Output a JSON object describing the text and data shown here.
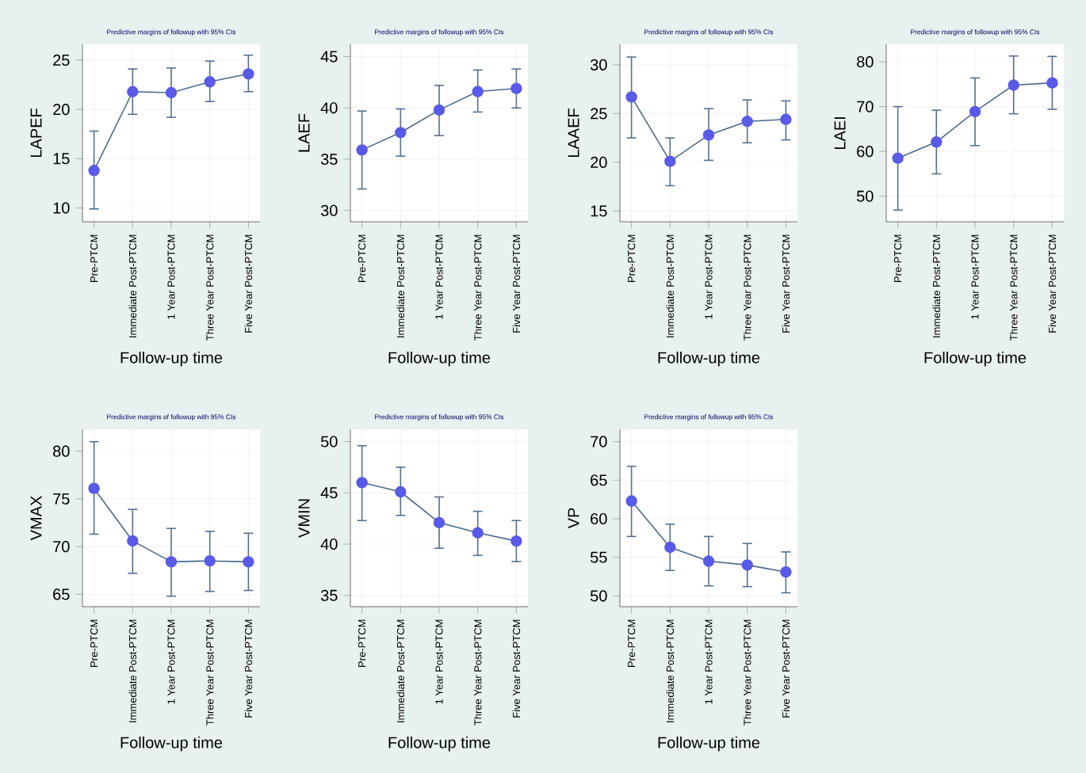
{
  "chart_data": [
    {
      "type": "line",
      "title": "Predictive margins of followup with 95% CIs",
      "xlabel": "Follow-up time",
      "ylabel": "LAPEF",
      "categories": [
        "Pre-PTCM",
        "Immediate Post-PTCM",
        "1 Year Post-PTCM",
        "Three Year Post-PTCM",
        "Five Year Post-PTCM"
      ],
      "values": [
        13.8,
        21.8,
        21.7,
        22.8,
        23.6
      ],
      "errors": [
        [
          9.9,
          17.8
        ],
        [
          19.5,
          24.1
        ],
        [
          19.2,
          24.2
        ],
        [
          20.8,
          24.9
        ],
        [
          21.8,
          25.5
        ]
      ],
      "color": "#5a5ae8",
      "ylim": [
        8.6,
        26.6
      ],
      "yticks": [
        10,
        15,
        20,
        25
      ],
      "grid": true,
      "marker": "circle"
    },
    {
      "type": "line",
      "title": "Predictive margins of followup with 95% CIs",
      "xlabel": "Follow-up time",
      "ylabel": "LAEF",
      "categories": [
        "Pre-PTCM",
        "Immediate Post-PTCM",
        "1 Year Post-PTCM",
        "Three Year Post-PTCM",
        "Five Year Post-PTCM"
      ],
      "values": [
        35.9,
        37.6,
        39.8,
        41.6,
        41.9
      ],
      "errors": [
        [
          32.1,
          39.7
        ],
        [
          35.3,
          39.9
        ],
        [
          37.3,
          42.2
        ],
        [
          39.6,
          43.7
        ],
        [
          40.0,
          43.8
        ]
      ],
      "color": "#5a5ae8",
      "ylim": [
        28.9,
        46.2
      ],
      "yticks": [
        30,
        35,
        40,
        45
      ],
      "grid": true,
      "marker": "circle"
    },
    {
      "type": "line",
      "title": "Predictive margins of followup with 95% CIs",
      "xlabel": "Follow-up time",
      "ylabel": "LAAEF",
      "categories": [
        "Pre-PTCM",
        "Immediate Post-PTCM",
        "1 Year Post-PTCM",
        "Three Year Post-PTCM",
        "Five Year Post-PTCM"
      ],
      "values": [
        26.7,
        20.1,
        22.8,
        24.2,
        24.4
      ],
      "errors": [
        [
          22.5,
          30.8
        ],
        [
          17.6,
          22.5
        ],
        [
          20.2,
          25.5
        ],
        [
          22.0,
          26.4
        ],
        [
          22.3,
          26.3
        ]
      ],
      "color": "#5a5ae8",
      "ylim": [
        13.9,
        32.1
      ],
      "yticks": [
        15,
        20,
        25,
        30
      ],
      "grid": true,
      "marker": "circle"
    },
    {
      "type": "line",
      "title": "Predictive margins of followup with 95% CIs",
      "xlabel": "Follow-up time",
      "ylabel": "LAEI",
      "categories": [
        "Pre-PTCM",
        "Immediate Post-PTCM",
        "1 Year Post-PTCM",
        "Three Year Post-PTCM",
        "Five Year Post-PTCM"
      ],
      "values": [
        58.5,
        62.1,
        68.9,
        74.8,
        75.3
      ],
      "errors": [
        [
          46.9,
          70.0
        ],
        [
          55.0,
          69.2
        ],
        [
          61.3,
          76.4
        ],
        [
          68.4,
          81.3
        ],
        [
          69.4,
          81.2
        ]
      ],
      "color": "#5a5ae8",
      "ylim": [
        44.3,
        83.9
      ],
      "yticks": [
        50,
        60,
        70,
        80
      ],
      "grid": true,
      "marker": "circle"
    },
    {
      "type": "line",
      "title": "Predictive margins of followup with 95% CIs",
      "xlabel": "Follow-up time",
      "ylabel": "VMAX",
      "categories": [
        "Pre-PTCM",
        "Immediate Post-PTCM",
        "1 Year Post-PTCM",
        "Three Year Post-PTCM",
        "Five Year Post-PTCM"
      ],
      "values": [
        76.1,
        70.6,
        68.4,
        68.5,
        68.4
      ],
      "errors": [
        [
          71.3,
          81.0
        ],
        [
          67.2,
          73.9
        ],
        [
          64.8,
          71.9
        ],
        [
          65.3,
          71.6
        ],
        [
          65.4,
          71.4
        ]
      ],
      "color": "#5a5ae8",
      "ylim": [
        63.7,
        82.3
      ],
      "yticks": [
        65,
        70,
        75,
        80
      ],
      "grid": true,
      "marker": "circle"
    },
    {
      "type": "line",
      "title": "Predictive margins of followup with 95% CIs",
      "xlabel": "Follow-up time",
      "ylabel": "VMIN",
      "categories": [
        "Pre-PTCM",
        "Immediate Post-PTCM",
        "1 Year Post-PTCM",
        "Three Year Post-PTCM",
        "Five Year Post-PTCM"
      ],
      "values": [
        46.0,
        45.1,
        42.1,
        41.1,
        40.3
      ],
      "errors": [
        [
          42.3,
          49.6
        ],
        [
          42.8,
          47.5
        ],
        [
          39.6,
          44.6
        ],
        [
          38.9,
          43.2
        ],
        [
          38.3,
          42.3
        ]
      ],
      "color": "#5a5ae8",
      "ylim": [
        33.9,
        51.2
      ],
      "yticks": [
        35,
        40,
        45,
        50
      ],
      "grid": true,
      "marker": "circle"
    },
    {
      "type": "line",
      "title": "Predictive margins of followup with 95% CIs",
      "xlabel": "Follow-up time",
      "ylabel": "VP",
      "categories": [
        "Pre-PTCM",
        "Immediate Post-PTCM",
        "1 Year Post-PTCM",
        "Three Year Post-PTCM",
        "Five Year Post-PTCM"
      ],
      "values": [
        62.3,
        56.3,
        54.5,
        54.0,
        53.1
      ],
      "errors": [
        [
          57.7,
          66.8
        ],
        [
          53.3,
          59.3
        ],
        [
          51.3,
          57.7
        ],
        [
          51.2,
          56.8
        ],
        [
          50.4,
          55.7
        ]
      ],
      "color": "#5a5ae8",
      "ylim": [
        48.6,
        71.6
      ],
      "yticks": [
        50,
        55,
        60,
        65,
        70
      ],
      "grid": true,
      "marker": "circle"
    }
  ]
}
